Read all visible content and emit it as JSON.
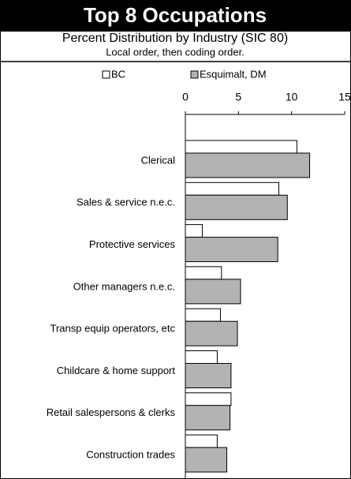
{
  "chart_data": {
    "type": "barh",
    "title": "Top 8 Occupations",
    "subtitle": "Percent Distribution by Industry (SIC 80)",
    "note": "Local order, then coding order.",
    "categories": [
      "Clerical",
      "Sales & service  n.e.c.",
      "Protective services",
      "Other managers n.e.c.",
      "Transp equip operators, etc",
      "Childcare & home support",
      "Retail salespersons & clerks",
      "Construction trades"
    ],
    "series": [
      {
        "name": "BC",
        "color": "#ffffff",
        "values": [
          10.5,
          8.8,
          1.6,
          3.4,
          3.3,
          3.0,
          4.3,
          3.0
        ]
      },
      {
        "name": "Esquimalt, DM",
        "color": "#b3b3b3",
        "values": [
          11.7,
          9.6,
          8.7,
          5.2,
          4.9,
          4.3,
          4.2,
          3.9
        ]
      }
    ],
    "xlim": [
      0,
      15
    ],
    "xticks": [
      0,
      5,
      10,
      15
    ]
  }
}
